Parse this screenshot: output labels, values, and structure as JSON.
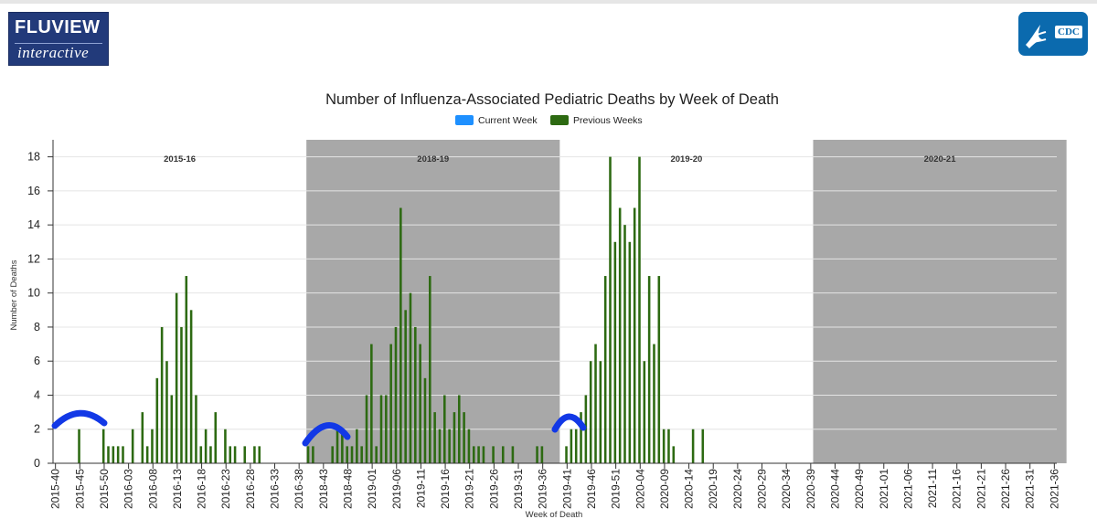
{
  "header": {
    "logo_line1": "FLUVIEW",
    "logo_line2": "interactive",
    "agency_logo": "CDC"
  },
  "colors": {
    "previous_weeks": "#2d6a12",
    "current_week": "#1e90ff",
    "season_shade": "#a8a8a8",
    "annotation": "#1238e6",
    "logo_bg": "#223a7a",
    "cdc_bg": "#0b6aae"
  },
  "chart_data": {
    "type": "bar",
    "title": "Number of Influenza-Associated Pediatric Deaths by Week of Death",
    "xlabel": "Week of Death",
    "ylabel": "Number of Deaths",
    "ylim": [
      0,
      19
    ],
    "yticks": [
      0,
      2,
      4,
      6,
      8,
      10,
      12,
      14,
      16,
      18
    ],
    "grid": true,
    "legend_position": "top-center",
    "legend": [
      {
        "label": "Current Week",
        "color": "#1e90ff"
      },
      {
        "label": "Previous Weeks",
        "color": "#2d6a12"
      }
    ],
    "seasons": [
      {
        "label": "2015-16",
        "start": 0,
        "end": 52,
        "shaded": false
      },
      {
        "label": "2018-19",
        "start": 52,
        "end": 104,
        "shaded": true
      },
      {
        "label": "2019-20",
        "start": 104,
        "end": 156,
        "shaded": false
      },
      {
        "label": "2020-21",
        "start": 156,
        "end": 208,
        "shaded": true
      }
    ],
    "tick_labels": [
      "2015-40",
      "2015-45",
      "2015-50",
      "2016-03",
      "2016-08",
      "2016-13",
      "2016-18",
      "2016-23",
      "2016-28",
      "2016-33",
      "2016-38",
      "2018-43",
      "2018-48",
      "2019-01",
      "2019-06",
      "2019-11",
      "2019-16",
      "2019-21",
      "2019-26",
      "2019-31",
      "2019-36",
      "2019-41",
      "2019-46",
      "2019-51",
      "2020-04",
      "2020-09",
      "2020-14",
      "2020-19",
      "2020-24",
      "2020-29",
      "2020-34",
      "2020-39",
      "2020-44",
      "2020-49",
      "2021-01",
      "2021-06",
      "2021-11",
      "2021-16",
      "2021-21",
      "2021-26",
      "2021-31",
      "2021-36"
    ],
    "series": [
      {
        "name": "Previous Weeks",
        "values": [
          0,
          0,
          0,
          0,
          0,
          2,
          0,
          0,
          0,
          0,
          2,
          1,
          1,
          1,
          1,
          0,
          2,
          0,
          3,
          1,
          2,
          5,
          8,
          6,
          4,
          10,
          8,
          11,
          9,
          4,
          1,
          2,
          1,
          3,
          0,
          2,
          1,
          1,
          0,
          1,
          0,
          1,
          1,
          0,
          0,
          0,
          0,
          0,
          0,
          0,
          0,
          0,
          1,
          1,
          0,
          0,
          0,
          1,
          2,
          2,
          1,
          1,
          2,
          1,
          4,
          7,
          1,
          4,
          4,
          7,
          8,
          15,
          9,
          10,
          8,
          7,
          5,
          11,
          3,
          2,
          4,
          2,
          3,
          4,
          3,
          2,
          1,
          1,
          1,
          0,
          1,
          0,
          1,
          0,
          1,
          0,
          0,
          0,
          0,
          1,
          1,
          0,
          0,
          0,
          0,
          1,
          2,
          2,
          3,
          4,
          6,
          7,
          6,
          11,
          18,
          13,
          15,
          14,
          13,
          15,
          18,
          6,
          11,
          7,
          11,
          2,
          2,
          1,
          0,
          0,
          0,
          2,
          0,
          2,
          0,
          0,
          0,
          0,
          0,
          0,
          0,
          0,
          0,
          0,
          0,
          0,
          0,
          0,
          0,
          0,
          0,
          0,
          0,
          0,
          0,
          0,
          0,
          0,
          0,
          0,
          0,
          0,
          0,
          0,
          0,
          0,
          0,
          0,
          0,
          0,
          0,
          0,
          0,
          0,
          0,
          0,
          0,
          0,
          0,
          0,
          0,
          0,
          0,
          0,
          0,
          0,
          0,
          0,
          0,
          0,
          0,
          0,
          0,
          0,
          0,
          0,
          0,
          0,
          0,
          0,
          0,
          0,
          0,
          0,
          0,
          0
        ]
      }
    ]
  }
}
